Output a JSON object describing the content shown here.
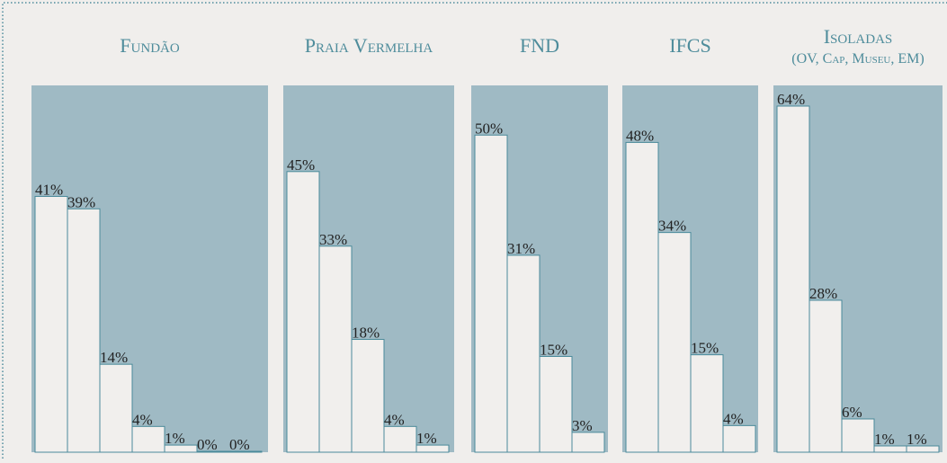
{
  "chart_data": [
    {
      "type": "bar",
      "title": "Fundão",
      "categories": [
        null,
        null,
        null,
        null,
        null,
        null,
        null
      ],
      "values": [
        41,
        39,
        14,
        4,
        1,
        0,
        0
      ],
      "value_labels": [
        "41%",
        "39%",
        "14%",
        "4%",
        "1%",
        "0%",
        "0%"
      ],
      "ylim": [
        0,
        59
      ],
      "color": "#f1efed"
    },
    {
      "type": "bar",
      "title": "Praia Vermelha",
      "categories": [
        null,
        null,
        null,
        null,
        null
      ],
      "values": [
        45,
        33,
        18,
        4,
        1
      ],
      "value_labels": [
        "45%",
        "33%",
        "18%",
        "4%",
        "1%"
      ],
      "ylim": [
        0,
        59
      ],
      "color": "#f1efed"
    },
    {
      "type": "bar",
      "title": "FND",
      "categories": [
        null,
        null,
        null,
        null
      ],
      "values": [
        50,
        31,
        15,
        3
      ],
      "value_labels": [
        "50%",
        "31%",
        "15%",
        "3%"
      ],
      "ylim": [
        0,
        58
      ],
      "color": "#f1efed"
    },
    {
      "type": "bar",
      "title": "IFCS",
      "categories": [
        null,
        null,
        null,
        null
      ],
      "values": [
        48,
        34,
        15,
        4
      ],
      "value_labels": [
        "48%",
        "34%",
        "15%",
        "4%"
      ],
      "ylim": [
        0,
        57
      ],
      "color": "#f1efed"
    },
    {
      "type": "bar",
      "title": "Isoladas",
      "subtitle": "(OV, Cap, Museu, EM)",
      "categories": [
        null,
        null,
        null,
        null,
        null
      ],
      "values": [
        64,
        28,
        6,
        1,
        1
      ],
      "value_labels": [
        "64%",
        "28%",
        "6%",
        "1%",
        "1%"
      ],
      "ylim": [
        0,
        68
      ],
      "color": "#f1efed"
    }
  ]
}
